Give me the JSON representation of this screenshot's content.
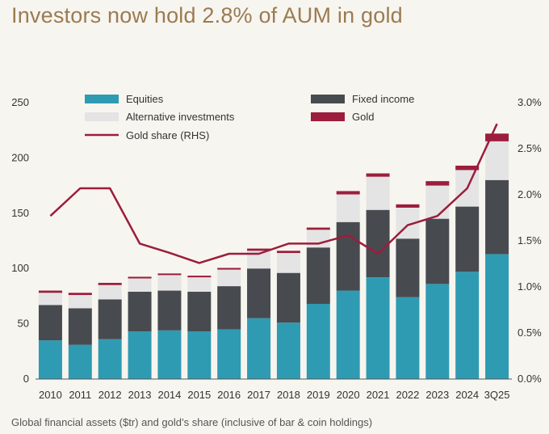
{
  "title": "Investors now hold 2.8% of AUM in gold",
  "footnote": "Global financial assets ($tr) and gold’s share (inclusive of bar & coin holdings)",
  "chart_data": {
    "type": "bar",
    "stacked": true,
    "categories": [
      "2010",
      "2011",
      "2012",
      "2013",
      "2014",
      "2015",
      "2016",
      "2017",
      "2018",
      "2019",
      "2020",
      "2021",
      "2022",
      "2023",
      "2024",
      "3Q25"
    ],
    "series": [
      {
        "name": "Equities",
        "color": "#2e9bb3",
        "values": [
          35,
          31,
          36,
          43,
          44,
          43,
          45,
          55,
          51,
          68,
          80,
          92,
          74,
          86,
          97,
          113
        ]
      },
      {
        "name": "Fixed income",
        "color": "#474b4f",
        "values": [
          32,
          33,
          36,
          36,
          36,
          36,
          39,
          45,
          45,
          51,
          62,
          61,
          53,
          59,
          59,
          67
        ]
      },
      {
        "name": "Alternative investments",
        "color": "#e4e4e5",
        "values": [
          11,
          12,
          13,
          12,
          14,
          13,
          15,
          16,
          18,
          16,
          25,
          30,
          28,
          30,
          33,
          35
        ]
      },
      {
        "name": "Gold",
        "color": "#9c1d3c",
        "values": [
          2,
          2,
          2,
          1.5,
          1.5,
          1.5,
          1.5,
          2,
          2,
          2,
          3,
          3,
          3,
          4,
          4,
          7
        ]
      }
    ],
    "line_series": {
      "name": "Gold share (RHS)",
      "color": "#9c1d3c",
      "axis": "right",
      "values": [
        1.77,
        2.07,
        2.07,
        1.47,
        1.37,
        1.26,
        1.36,
        1.36,
        1.47,
        1.47,
        1.56,
        1.36,
        1.67,
        1.77,
        2.07,
        2.77
      ]
    },
    "yticks_left": [
      "0",
      "50",
      "100",
      "150",
      "200",
      "250"
    ],
    "yticks_right": [
      "0.0%",
      "0.5%",
      "1.0%",
      "1.5%",
      "2.0%",
      "2.5%",
      "3.0%"
    ],
    "ylim_left": [
      0,
      250
    ],
    "ylim_right": [
      0,
      3.0
    ],
    "legend_placement": "top",
    "grid": false
  }
}
